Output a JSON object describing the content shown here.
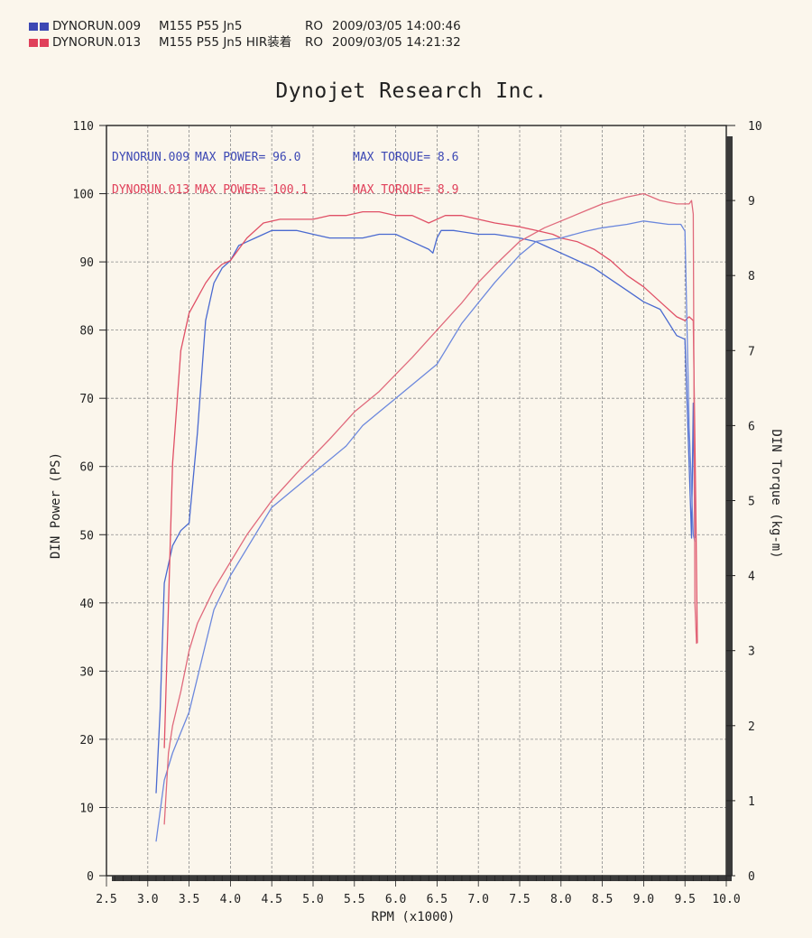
{
  "legend": [
    {
      "file": "DYNORUN.009",
      "desc": "M155 P55 Jn5",
      "mode": "RO",
      "time": "2009/03/05 14:00:46",
      "color": "#3c48b4"
    },
    {
      "file": "DYNORUN.013",
      "desc": "M155 P55 Jn5 HIR装着",
      "mode": "RO",
      "time": "2009/03/05 14:21:32",
      "color": "#e0405a"
    }
  ],
  "title": "Dynojet  Research  Inc.",
  "annotations": [
    {
      "run": "DYNORUN.009",
      "power": "MAX POWER= 96.0",
      "torque": "MAX TORQUE= 8.6"
    },
    {
      "run": "DYNORUN.013",
      "power": "MAX POWER= 100.1",
      "torque": "MAX TORQUE= 8.9"
    }
  ],
  "chart_data": {
    "type": "line",
    "xlabel": "RPM (x1000)",
    "ylabel": "DIN Power (PS)",
    "y2label": "DIN Torque (kg-m)",
    "xlim": [
      2.5,
      10.0
    ],
    "ylim": [
      0,
      110
    ],
    "y2lim": [
      0,
      10
    ],
    "xticks": [
      "2.5",
      "3.0",
      "3.5",
      "4.0",
      "4.5",
      "5.0",
      "5.5",
      "6.0",
      "6.5",
      "7.0",
      "7.5",
      "8.0",
      "8.5",
      "9.0",
      "9.5",
      "10.0"
    ],
    "yticks": [
      "0",
      "10",
      "20",
      "30",
      "40",
      "50",
      "60",
      "70",
      "80",
      "90",
      "100",
      "110"
    ],
    "y2ticks": [
      "0",
      "1",
      "2",
      "3",
      "4",
      "5",
      "6",
      "7",
      "8",
      "9",
      "10"
    ],
    "grid": true,
    "series": [
      {
        "name": "DYNORUN.009",
        "measure": "torque",
        "axis": "y2",
        "color": "#4a6ad0",
        "x": [
          3.1,
          3.15,
          3.2,
          3.3,
          3.4,
          3.5,
          3.6,
          3.7,
          3.8,
          3.9,
          4.0,
          4.1,
          4.2,
          4.3,
          4.4,
          4.5,
          4.6,
          4.8,
          5.0,
          5.2,
          5.4,
          5.6,
          5.8,
          6.0,
          6.2,
          6.4,
          6.45,
          6.5,
          6.55,
          6.7,
          7.0,
          7.2,
          7.5,
          7.7,
          7.8,
          8.0,
          8.2,
          8.4,
          8.6,
          8.8,
          9.0,
          9.2,
          9.4,
          9.5,
          9.55,
          9.58,
          9.6,
          9.62
        ],
        "y": [
          1.1,
          2.2,
          3.9,
          4.4,
          4.6,
          4.7,
          5.9,
          7.4,
          7.9,
          8.1,
          8.2,
          8.4,
          8.45,
          8.5,
          8.55,
          8.6,
          8.6,
          8.6,
          8.55,
          8.5,
          8.5,
          8.5,
          8.55,
          8.55,
          8.45,
          8.35,
          8.3,
          8.5,
          8.6,
          8.6,
          8.55,
          8.55,
          8.5,
          8.45,
          8.4,
          8.3,
          8.2,
          8.1,
          7.95,
          7.8,
          7.65,
          7.55,
          7.2,
          7.15,
          5.5,
          4.5,
          6.3,
          4.5
        ]
      },
      {
        "name": "DYNORUN.013",
        "measure": "torque",
        "axis": "y2",
        "color": "#e05066",
        "x": [
          3.2,
          3.3,
          3.4,
          3.5,
          3.6,
          3.7,
          3.8,
          3.9,
          4.0,
          4.2,
          4.4,
          4.6,
          4.8,
          5.0,
          5.2,
          5.4,
          5.6,
          5.8,
          6.0,
          6.2,
          6.4,
          6.6,
          6.8,
          7.0,
          7.2,
          7.5,
          7.7,
          7.9,
          8.0,
          8.2,
          8.4,
          8.6,
          8.8,
          9.0,
          9.2,
          9.4,
          9.5,
          9.55,
          9.6,
          9.63,
          9.65
        ],
        "y": [
          1.7,
          5.5,
          7.0,
          7.5,
          7.7,
          7.9,
          8.05,
          8.15,
          8.2,
          8.5,
          8.7,
          8.75,
          8.75,
          8.75,
          8.8,
          8.8,
          8.85,
          8.85,
          8.8,
          8.8,
          8.7,
          8.8,
          8.8,
          8.75,
          8.7,
          8.65,
          8.6,
          8.55,
          8.5,
          8.45,
          8.35,
          8.2,
          8.0,
          7.85,
          7.65,
          7.45,
          7.4,
          7.45,
          7.4,
          5.0,
          3.1
        ]
      },
      {
        "name": "DYNORUN.009",
        "measure": "power",
        "axis": "y",
        "color": "#6c88dd",
        "x": [
          3.1,
          3.2,
          3.3,
          3.4,
          3.5,
          3.6,
          3.7,
          3.8,
          4.0,
          4.2,
          4.5,
          4.8,
          5.0,
          5.2,
          5.4,
          5.6,
          5.8,
          6.0,
          6.2,
          6.4,
          6.5,
          6.6,
          6.8,
          7.0,
          7.2,
          7.5,
          7.7,
          8.0,
          8.3,
          8.5,
          8.8,
          9.0,
          9.3,
          9.45,
          9.5,
          9.55,
          9.6,
          9.62
        ],
        "y": [
          5,
          14,
          18,
          21,
          24,
          29,
          34,
          39,
          44,
          48,
          54,
          57,
          59,
          61,
          63,
          66,
          68,
          70,
          72,
          74,
          75,
          77,
          81,
          84,
          87,
          91,
          93,
          93.5,
          94.5,
          95,
          95.5,
          96,
          95.5,
          95.5,
          94.5,
          66,
          50,
          49
        ]
      },
      {
        "name": "DYNORUN.013",
        "measure": "power",
        "axis": "y",
        "color": "#e06a7c",
        "x": [
          3.2,
          3.25,
          3.3,
          3.4,
          3.5,
          3.6,
          3.8,
          4.0,
          4.2,
          4.5,
          4.8,
          5.0,
          5.2,
          5.5,
          5.8,
          6.0,
          6.2,
          6.5,
          6.8,
          7.0,
          7.2,
          7.5,
          7.8,
          8.0,
          8.3,
          8.5,
          8.8,
          9.0,
          9.2,
          9.4,
          9.55,
          9.58,
          9.6,
          9.62,
          9.64
        ],
        "y": [
          7.5,
          18,
          22,
          27,
          33,
          37,
          42,
          46,
          50,
          55,
          59,
          61.5,
          64,
          68,
          71,
          73.5,
          76,
          80,
          84,
          87,
          89.5,
          93,
          95,
          96,
          97.5,
          98.5,
          99.5,
          100,
          99,
          98.5,
          98.5,
          99,
          97,
          40,
          34
        ]
      }
    ]
  }
}
